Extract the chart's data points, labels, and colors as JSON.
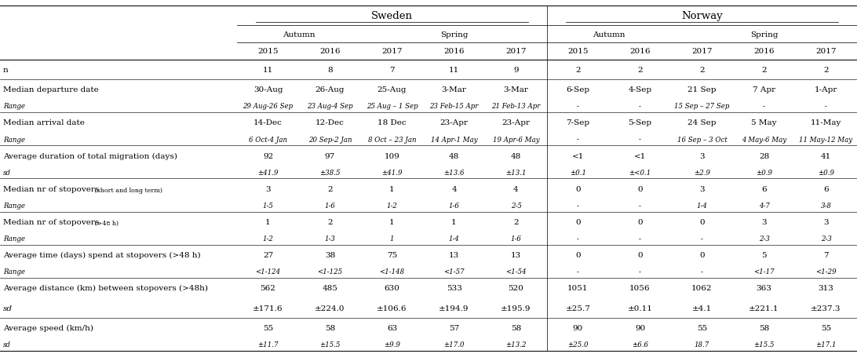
{
  "rows": [
    [
      "n",
      "11",
      "8",
      "7",
      "11",
      "9",
      "2",
      "2",
      "2",
      "2",
      "2"
    ],
    [
      "Median departure date",
      "30-Aug",
      "26-Aug",
      "25-Aug",
      "3-Mar",
      "3-Mar",
      "6-Sep",
      "4-Sep",
      "21 Sep",
      "7 Apr",
      "1-Apr"
    ],
    [
      "Range",
      "29 Aug-26 Sep",
      "23 Aug-4 Sep",
      "25 Aug – 1 Sep",
      "23 Feb-15 Apr",
      "21 Feb-13 Apr",
      "-",
      "-",
      "15 Sep – 27 Sep",
      "-",
      "-"
    ],
    [
      "Median arrival date",
      "14-Dec",
      "12-Dec",
      "18 Dec",
      "23-Apr",
      "23-Apr",
      "7-Sep",
      "5-Sep",
      "24 Sep",
      "5 May",
      "11-May"
    ],
    [
      "Range",
      "6 Oct-4 Jan",
      "20 Sep-2 Jan",
      "8 Oct – 23 Jan",
      "14 Apr-1 May",
      "19 Apr-6 May",
      "-",
      "-",
      "16 Sep – 3 Oct",
      "4 May-6 May",
      "11 May-12 May"
    ],
    [
      "Average duration of total migration (days)",
      "92",
      "97",
      "109",
      "48",
      "48",
      "<1",
      "<1",
      "3",
      "28",
      "41"
    ],
    [
      "sd",
      "±41.9",
      "±38.5",
      "±41.9",
      "±13.6",
      "±13.1",
      "±0.1",
      "±<0.1",
      "±2.9",
      "±0.9",
      "±0.9"
    ],
    [
      "Median nr of stopovers (short and long term)",
      "3",
      "2",
      "1",
      "4",
      "4",
      "0",
      "0",
      "3",
      "6",
      "6"
    ],
    [
      "Range",
      "1-5",
      "1-6",
      "1-2",
      "1-6",
      "2-5",
      "-",
      "-",
      "1-4",
      "4-7",
      "3-8"
    ],
    [
      "Median nr of stopovers (>48 h)",
      "1",
      "2",
      "1",
      "1",
      "2",
      "0",
      "0",
      "0",
      "3",
      "3"
    ],
    [
      "Range",
      "1-2",
      "1-3",
      "1",
      "1-4",
      "1-6",
      "-",
      "-",
      "-",
      "2-3",
      "2-3"
    ],
    [
      "Average time (days) spend at stopovers (>48 h)",
      "27",
      "38",
      "75",
      "13",
      "13",
      "0",
      "0",
      "0",
      "5",
      "7"
    ],
    [
      "Range",
      "<1-124",
      "<1-125",
      "<1-148",
      "<1-57",
      "<1-54",
      "-",
      "-",
      "-",
      "<1-17",
      "<1-29"
    ],
    [
      "Average distance (km) between stopovers (>48h)",
      "562",
      "485",
      "630",
      "533",
      "520",
      "1051",
      "1056",
      "1062",
      "363",
      "313"
    ],
    [
      "sd",
      "±171.6",
      "±224.0",
      "±106.6",
      "±194.9",
      "±195.9",
      "±25.7",
      "±0.11",
      "±4.1",
      "±221.1",
      "±237.3"
    ],
    [
      "Average speed (km/h)",
      "55",
      "58",
      "63",
      "57",
      "58",
      "90",
      "90",
      "55",
      "58",
      "55"
    ],
    [
      "sd",
      "±11.7",
      "±15.5",
      "±9.9",
      "±17.0",
      "±13.2",
      "±25.0",
      "±6.6",
      "18.7",
      "±15.5",
      "±17.1"
    ]
  ],
  "italic_rows": [
    2,
    4,
    6,
    8,
    10,
    12,
    16
  ],
  "separator_after_rows": [
    0,
    2,
    4,
    6,
    8,
    10,
    12,
    14
  ]
}
